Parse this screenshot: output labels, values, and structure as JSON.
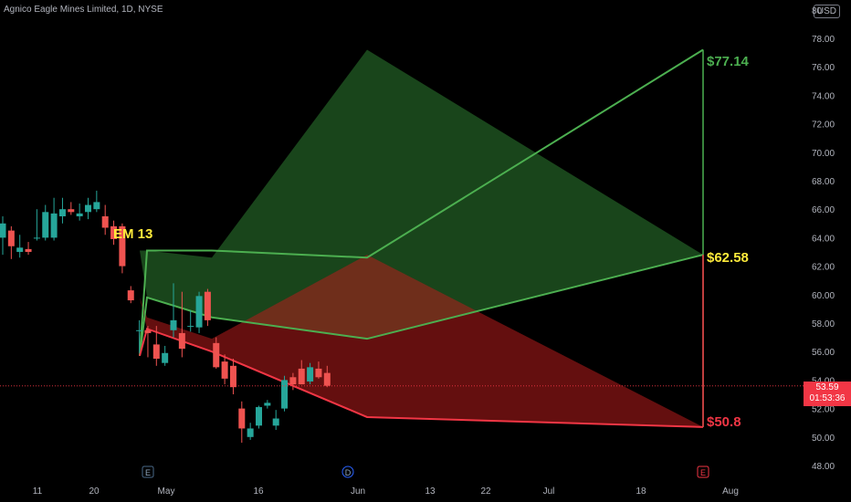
{
  "header": {
    "title": "Agnico Eagle Mines Limited, 1D, NYSE",
    "currency": "USD"
  },
  "price_tag": {
    "price": "53.59",
    "countdown": "01:53:36"
  },
  "colors": {
    "bull": "#26a69a",
    "bear": "#ef5350",
    "upper_band": "#4caf50",
    "lower_band": "#f23645",
    "label_yellow": "#ffeb3b"
  },
  "chart_data": {
    "type": "candlestick",
    "title": "Agnico Eagle Mines Limited, 1D, NYSE",
    "ylim": [
      47.5,
      80.5
    ],
    "y_ticks": [
      "48.00",
      "50.00",
      "52.00",
      "54.00",
      "56.00",
      "58.00",
      "60.00",
      "62.00",
      "64.00",
      "66.00",
      "68.00",
      "70.00",
      "72.00",
      "74.00",
      "76.00",
      "78.00",
      "80"
    ],
    "x_ticks": [
      "11",
      "20",
      "May",
      "16",
      "Jun",
      "13",
      "22",
      "Jul",
      "18",
      "Aug"
    ],
    "event_markers": [
      "E",
      "D",
      "E"
    ],
    "candles": [
      {
        "o": 64.0,
        "h": 65.5,
        "l": 62.8,
        "c": 65.0
      },
      {
        "o": 64.5,
        "h": 64.8,
        "l": 62.5,
        "c": 63.4
      },
      {
        "o": 63.0,
        "h": 64.2,
        "l": 62.6,
        "c": 63.3
      },
      {
        "o": 63.2,
        "h": 63.7,
        "l": 62.8,
        "c": 63.0
      },
      {
        "o": 64.0,
        "h": 66.0,
        "l": 63.8,
        "c": 64.0
      },
      {
        "o": 64.0,
        "h": 66.3,
        "l": 63.8,
        "c": 65.8
      },
      {
        "o": 64.0,
        "h": 66.8,
        "l": 63.8,
        "c": 65.7
      },
      {
        "o": 65.5,
        "h": 66.8,
        "l": 65.0,
        "c": 66.0
      },
      {
        "o": 66.0,
        "h": 66.5,
        "l": 65.6,
        "c": 65.8
      },
      {
        "o": 65.5,
        "h": 66.4,
        "l": 65.2,
        "c": 65.7
      },
      {
        "o": 65.8,
        "h": 66.8,
        "l": 65.3,
        "c": 66.3
      },
      {
        "o": 66.0,
        "h": 67.3,
        "l": 65.8,
        "c": 66.5
      },
      {
        "o": 65.5,
        "h": 66.3,
        "l": 64.2,
        "c": 64.7
      },
      {
        "o": 64.8,
        "h": 65.2,
        "l": 63.5,
        "c": 63.9
      },
      {
        "o": 64.8,
        "h": 65.0,
        "l": 61.5,
        "c": 62.0
      },
      {
        "o": 60.3,
        "h": 60.6,
        "l": 59.4,
        "c": 59.6
      },
      {
        "o": 57.5,
        "h": 58.2,
        "l": 55.9,
        "c": 57.5
      },
      {
        "o": 57.5,
        "h": 57.8,
        "l": 55.6,
        "c": 57.3
      },
      {
        "o": 56.5,
        "h": 57.8,
        "l": 55.0,
        "c": 55.5
      },
      {
        "o": 55.2,
        "h": 56.4,
        "l": 55.0,
        "c": 55.9
      },
      {
        "o": 57.5,
        "h": 60.8,
        "l": 57.0,
        "c": 58.2
      },
      {
        "o": 57.3,
        "h": 60.2,
        "l": 55.6,
        "c": 56.2
      },
      {
        "o": 57.8,
        "h": 58.9,
        "l": 57.4,
        "c": 57.8
      },
      {
        "o": 57.7,
        "h": 60.2,
        "l": 57.3,
        "c": 59.9
      },
      {
        "o": 60.2,
        "h": 60.4,
        "l": 57.8,
        "c": 58.2
      },
      {
        "o": 56.6,
        "h": 57.0,
        "l": 54.8,
        "c": 54.9
      },
      {
        "o": 55.3,
        "h": 55.8,
        "l": 53.7,
        "c": 54.1
      },
      {
        "o": 55.0,
        "h": 55.5,
        "l": 53.0,
        "c": 53.5
      },
      {
        "o": 52.0,
        "h": 52.5,
        "l": 49.6,
        "c": 50.6
      },
      {
        "o": 50.0,
        "h": 51.0,
        "l": 49.8,
        "c": 50.6
      },
      {
        "o": 50.8,
        "h": 52.2,
        "l": 50.6,
        "c": 52.1
      },
      {
        "o": 52.2,
        "h": 52.6,
        "l": 52.0,
        "c": 52.4
      },
      {
        "o": 50.8,
        "h": 51.9,
        "l": 50.5,
        "c": 51.3
      },
      {
        "o": 52.0,
        "h": 54.3,
        "l": 51.8,
        "c": 54.0
      },
      {
        "o": 54.2,
        "h": 54.5,
        "l": 53.3,
        "c": 53.7
      },
      {
        "o": 54.8,
        "h": 55.4,
        "l": 53.7,
        "c": 53.7
      },
      {
        "o": 53.9,
        "h": 55.2,
        "l": 53.7,
        "c": 54.9
      },
      {
        "o": 54.8,
        "h": 55.3,
        "l": 54.1,
        "c": 54.2
      },
      {
        "o": 54.5,
        "h": 55.0,
        "l": 53.5,
        "c": 53.6
      }
    ],
    "upper_band": {
      "x": [
        "Apr 26",
        "Apr 27",
        "May 8",
        "Jun 3",
        "Jul 26"
      ],
      "y": [
        55.7,
        63.1,
        63.1,
        62.6,
        77.2
      ]
    },
    "middle_band": {
      "x": [
        "Apr 26",
        "Apr 27",
        "May 8",
        "Jun 3",
        "Jul 26"
      ],
      "y": [
        55.7,
        59.8,
        58.4,
        56.9,
        62.8
      ]
    },
    "lower_band": {
      "x": [
        "Apr 26",
        "Apr 27",
        "May 8",
        "Jun 3",
        "Jul 26"
      ],
      "y": [
        55.7,
        57.6,
        56.0,
        51.4,
        50.7
      ]
    },
    "annotations": {
      "em_label": "EM 13",
      "upper_value": "$77.14",
      "middle_value": "$62.58",
      "lower_value": "$50.8"
    },
    "last_price": 53.59
  }
}
